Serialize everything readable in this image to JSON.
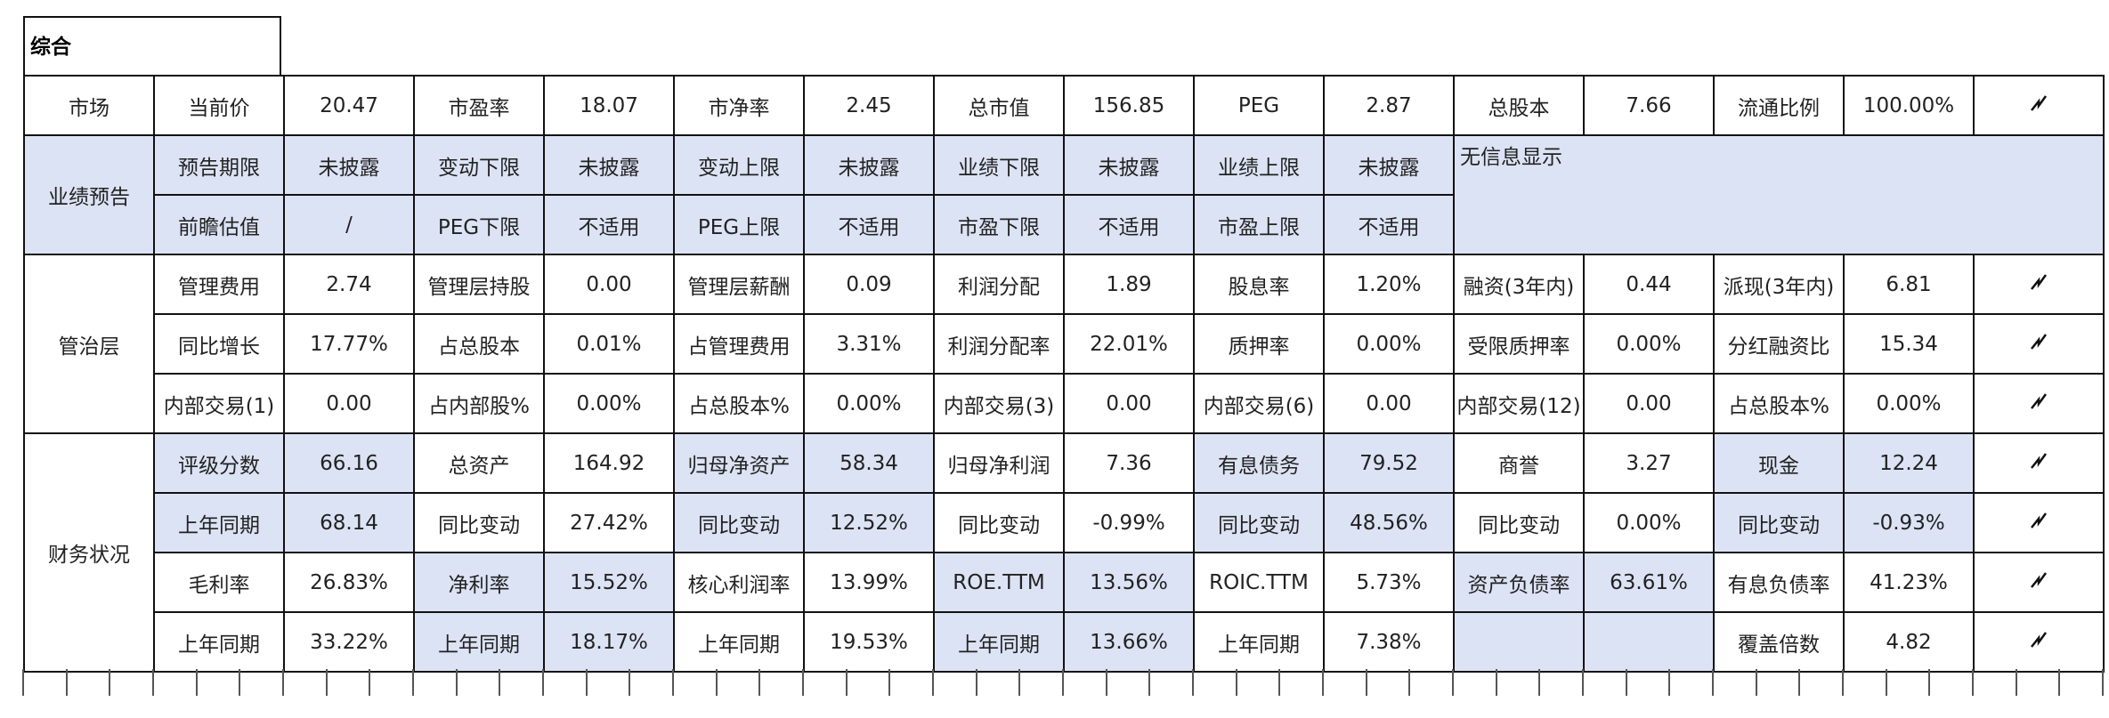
{
  "title": "综合",
  "table": {
    "rows": [
      [
        "市场",
        "当前价",
        "20.47",
        "市盈率",
        "18.07",
        "市净率",
        "2.45",
        "总市值",
        "156.85",
        "PEG",
        "2.87",
        "总股本",
        "7.66",
        "流通比例",
        "100.00%"
      ],
      [
        "业绩预告",
        "预告期限",
        "未披露",
        "变动下限",
        "未披露",
        "变动上限",
        "未披露",
        "业绩下限",
        "未披露",
        "业绩上限",
        "未披露",
        "无信息显示"
      ],
      [
        "前瞻估值",
        "/",
        "PEG下限",
        "不适用",
        "PEG上限",
        "不适用",
        "市盈下限",
        "不适用",
        "市盈上限",
        "不适用"
      ],
      [
        "管治层",
        "管理费用",
        "2.74",
        "管理层持股",
        "0.00",
        "管理层薪酬",
        "0.09",
        "利润分配",
        "1.89",
        "股息率",
        "1.20%",
        "融资(3年内)",
        "0.44",
        "派现(3年内)",
        "6.81"
      ],
      [
        "同比增长",
        "17.77%",
        "占总股本",
        "0.01%",
        "占管理费用",
        "3.31%",
        "利润分配率",
        "22.01%",
        "质押率",
        "0.00%",
        "受限质押率",
        "0.00%",
        "分红融资比",
        "15.34"
      ],
      [
        "内部交易(1)",
        "0.00",
        "占内部股%",
        "0.00%",
        "占总股本%",
        "0.00%",
        "内部交易(3)",
        "0.00",
        "内部交易(6)",
        "0.00",
        "内部交易(12)",
        "0.00",
        "占总股本%",
        "0.00%"
      ],
      [
        "财务状况",
        "评级分数",
        "66.16",
        "总资产",
        "164.92",
        "归母净资产",
        "58.34",
        "归母净利润",
        "7.36",
        "有息债务",
        "79.52",
        "商誉",
        "3.27",
        "现金",
        "12.24"
      ],
      [
        "上年同期",
        "68.14",
        "同比变动",
        "27.42%",
        "同比变动",
        "12.52%",
        "同比变动",
        "-0.99%",
        "同比变动",
        "48.56%",
        "同比变动",
        "0.00%",
        "同比变动",
        "-0.93%"
      ],
      [
        "毛利率",
        "26.83%",
        "净利率",
        "15.52%",
        "核心利润率",
        "13.99%",
        "ROE.TTM",
        "13.56%",
        "ROIC.TTM",
        "5.73%",
        "资产负债率",
        "63.61%",
        "有息负债率",
        "41.23%"
      ],
      [
        "上年同期",
        "33.22%",
        "上年同期",
        "18.17%",
        "上年同期",
        "19.53%",
        "上年同期",
        "13.66%",
        "上年同期",
        "7.38%",
        "覆盖倍数",
        "4.82"
      ]
    ]
  }
}
